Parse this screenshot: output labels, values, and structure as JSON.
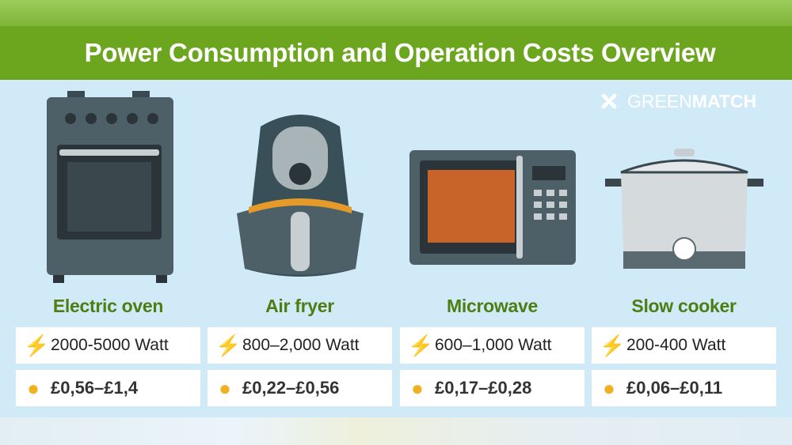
{
  "title": "Power Consumption and Operation Costs Overview",
  "logo": {
    "light": "GREEN",
    "bold": "MATCH"
  },
  "appliances": [
    {
      "name": "Electric oven",
      "power": "2000-5000 Watt",
      "cost": "£0,56–£1,4",
      "icon": "electric-oven"
    },
    {
      "name": "Air fryer",
      "power": "800–2,000 Watt",
      "cost": "£0,22–£0,56",
      "icon": "air-fryer"
    },
    {
      "name": "Microwave",
      "power": "600–1,000 Watt",
      "cost": "£0,17–£0,28",
      "icon": "microwave"
    },
    {
      "name": "Slow cooker",
      "power": "200-400 Watt",
      "cost": "£0,06–£0,11",
      "icon": "slow-cooker"
    }
  ],
  "icons": {
    "power": "lightning-bolt-icon",
    "cost": "coins-icon"
  },
  "colors": {
    "title_bar": "#6ca61f",
    "background": "#d0eaf8",
    "name_text": "#4e7d12",
    "bolt": "#f5c431",
    "coins": "#f0b020"
  }
}
